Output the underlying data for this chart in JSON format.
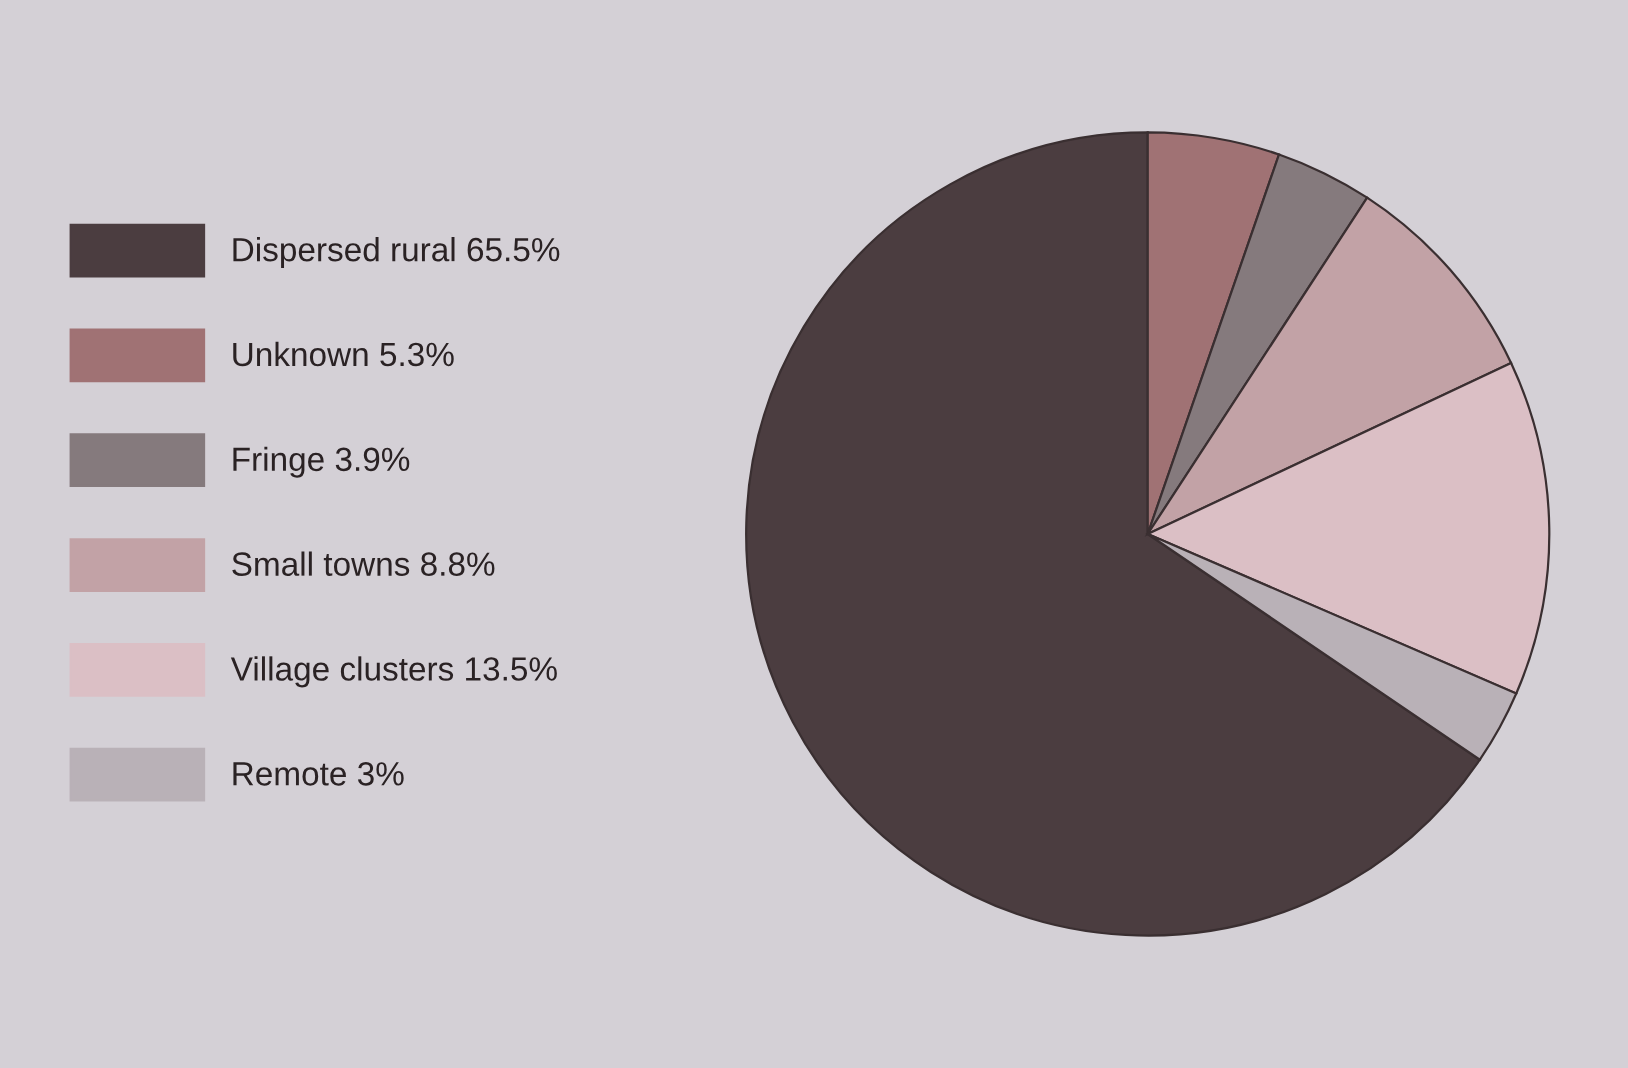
{
  "chart_data": {
    "type": "pie",
    "categories": [
      "Dispersed rural 65.5%",
      "Unknown 5.3%",
      "Fringe 3.9%",
      "Small towns 8.8%",
      "Village clusters 13.5%",
      "Remote 3%"
    ],
    "values": [
      65.5,
      5.3,
      3.9,
      8.8,
      13.5,
      3
    ],
    "colors": [
      "#4b3d40",
      "#a07274",
      "#857a7d",
      "#c2a2a6",
      "#dbbfc5",
      "#b9b1b7"
    ],
    "legend": "left"
  }
}
